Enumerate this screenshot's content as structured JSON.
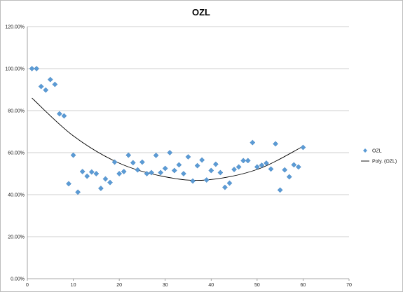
{
  "chart_data": {
    "type": "scatter",
    "title": "OZL",
    "xlabel": "",
    "ylabel": "",
    "xlim": [
      0,
      70
    ],
    "ylim": [
      0,
      1.2
    ],
    "x_ticks": [
      0,
      10,
      20,
      30,
      40,
      50,
      60,
      70
    ],
    "x_tick_labels": [
      "0",
      "10",
      "20",
      "30",
      "40",
      "50",
      "60",
      "70"
    ],
    "y_ticks": [
      0,
      0.2,
      0.4,
      0.6,
      0.8,
      1.0,
      1.2
    ],
    "y_tick_labels": [
      "0.00%",
      "20.00%",
      "40.00%",
      "60.00%",
      "80.00%",
      "100.00%",
      "120.00%"
    ],
    "grid": "horizontal",
    "legend_position": "right",
    "series": [
      {
        "name": "OZL",
        "marker": "diamond",
        "color": "#5b9bd5",
        "x": [
          1,
          2,
          3,
          4,
          5,
          6,
          7,
          8,
          9,
          10,
          11,
          12,
          13,
          14,
          15,
          16,
          17,
          18,
          19,
          20,
          21,
          22,
          23,
          24,
          25,
          26,
          27,
          28,
          29,
          30,
          31,
          32,
          33,
          34,
          35,
          36,
          37,
          38,
          39,
          40,
          41,
          42,
          43,
          44,
          45,
          46,
          47,
          48,
          49,
          50,
          51,
          52,
          53,
          54,
          55,
          56,
          57,
          58,
          59,
          60
        ],
        "y": [
          1.0,
          1.0,
          0.915,
          0.898,
          0.948,
          0.925,
          0.785,
          0.775,
          0.452,
          0.588,
          0.412,
          0.51,
          0.488,
          0.508,
          0.5,
          0.43,
          0.475,
          0.458,
          0.555,
          0.5,
          0.51,
          0.588,
          0.552,
          0.518,
          0.555,
          0.5,
          0.505,
          0.587,
          0.505,
          0.525,
          0.6,
          0.515,
          0.542,
          0.5,
          0.58,
          0.465,
          0.538,
          0.565,
          0.47,
          0.515,
          0.545,
          0.505,
          0.435,
          0.455,
          0.52,
          0.532,
          0.562,
          0.562,
          0.648,
          0.532,
          0.54,
          0.55,
          0.522,
          0.642,
          0.422,
          0.518,
          0.485,
          0.542,
          0.532,
          0.625
        ]
      },
      {
        "name": "Poly. (OZL)",
        "type": "polynomial-trendline",
        "color": "#000000",
        "x": [
          1,
          10,
          20,
          30,
          39,
          50,
          60
        ],
        "y": [
          0.86,
          0.68,
          0.55,
          0.485,
          0.47,
          0.52,
          0.63
        ]
      }
    ]
  }
}
